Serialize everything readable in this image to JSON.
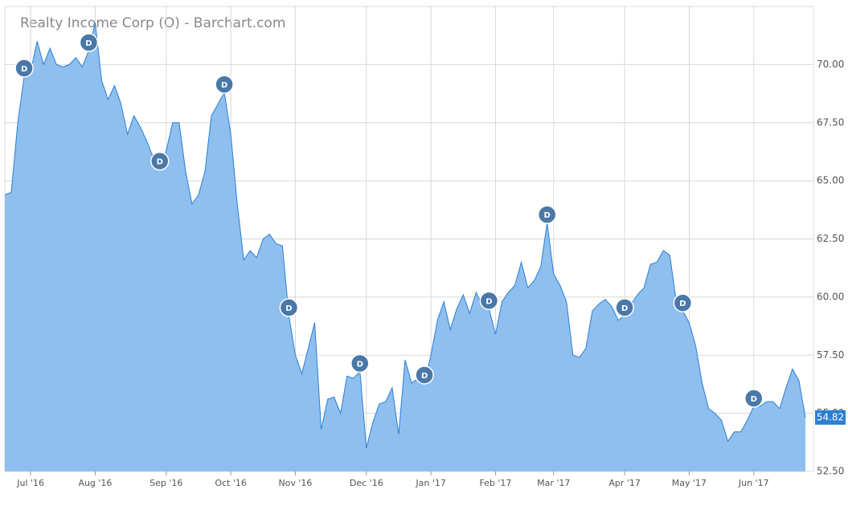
{
  "chart_data": {
    "type": "area",
    "title": "Realty Income Corp (O) - Barchart.com",
    "color": "#8fbfee",
    "line_color": "#2a7fd4",
    "categories": [
      null,
      null,
      null,
      null,
      "Jul '16",
      null,
      null,
      null,
      null,
      null,
      null,
      null,
      null,
      null,
      "Aug '16",
      null,
      null,
      null,
      null,
      null,
      null,
      null,
      null,
      null,
      null,
      "Sep '16",
      null,
      null,
      null,
      null,
      null,
      null,
      null,
      null,
      null,
      "Oct '16",
      null,
      null,
      null,
      null,
      null,
      null,
      null,
      null,
      null,
      "Nov '16",
      null,
      null,
      null,
      null,
      null,
      null,
      null,
      null,
      null,
      null,
      "Dec '16",
      null,
      null,
      null,
      null,
      null,
      null,
      null,
      null,
      null,
      "Jan '17",
      null,
      null,
      null,
      null,
      null,
      null,
      null,
      null,
      null,
      "Feb '17",
      null,
      null,
      null,
      null,
      null,
      null,
      null,
      null,
      "Mar '17",
      null,
      null,
      null,
      null,
      null,
      null,
      null,
      null,
      null,
      null,
      "Apr '17",
      null,
      null,
      null,
      null,
      null,
      null,
      null,
      null,
      null,
      "May '17",
      null,
      null,
      null,
      null,
      null,
      null,
      null,
      null,
      null,
      "Jun '17",
      null,
      null,
      null,
      null,
      null,
      null,
      null,
      null
    ],
    "values": [
      64.4,
      64.5,
      67.5,
      69.5,
      69.7,
      71.0,
      70.0,
      70.7,
      70.0,
      69.9,
      70.0,
      70.3,
      69.9,
      70.6,
      71.8,
      69.3,
      68.5,
      69.1,
      68.3,
      67.0,
      67.8,
      67.3,
      66.7,
      66.0,
      65.5,
      66.3,
      67.5,
      67.5,
      65.4,
      64.0,
      64.4,
      65.4,
      67.8,
      68.3,
      68.8,
      67.0,
      64.0,
      61.6,
      62.0,
      61.7,
      62.5,
      62.7,
      62.3,
      62.2,
      59.2,
      57.5,
      56.7,
      57.8,
      58.9,
      54.3,
      55.6,
      55.7,
      55.0,
      56.6,
      56.5,
      56.8,
      53.5,
      54.6,
      55.4,
      55.5,
      56.1,
      54.1,
      57.3,
      56.3,
      56.5,
      56.3,
      57.5,
      59.0,
      59.8,
      58.6,
      59.5,
      60.1,
      59.3,
      60.2,
      59.6,
      59.5,
      58.4,
      59.8,
      60.2,
      60.5,
      61.5,
      60.4,
      60.7,
      61.3,
      63.2,
      61.0,
      60.5,
      59.8,
      57.5,
      57.4,
      57.8,
      59.4,
      59.7,
      59.9,
      59.6,
      59.0,
      59.2,
      59.7,
      60.1,
      60.4,
      61.4,
      61.5,
      62.0,
      61.8,
      59.8,
      59.4,
      58.9,
      57.9,
      56.3,
      55.2,
      55.0,
      54.7,
      53.8,
      54.2,
      54.2,
      54.7,
      55.3,
      55.3,
      55.5,
      55.5,
      55.2,
      56.1,
      56.9,
      56.4,
      54.82
    ],
    "annotations": [
      {
        "text": "D",
        "x": 3
      },
      {
        "text": "D",
        "x": 13
      },
      {
        "text": "D",
        "x": 24
      },
      {
        "text": "D",
        "x": 34
      },
      {
        "text": "D",
        "x": 44
      },
      {
        "text": "D",
        "x": 55
      },
      {
        "text": "D",
        "x": 65
      },
      {
        "text": "D",
        "x": 75
      },
      {
        "text": "D",
        "x": 84
      },
      {
        "text": "D",
        "x": 96
      },
      {
        "text": "D",
        "x": 105
      },
      {
        "text": "D",
        "x": 116
      }
    ],
    "ylim": [
      52.5,
      72.5
    ],
    "yticks": [
      {
        "value": 52.5,
        "label": "52.50"
      },
      {
        "value": 55,
        "label": "55.00"
      },
      {
        "value": 57.5,
        "label": "57.50"
      },
      {
        "value": 60,
        "label": "60.00"
      },
      {
        "value": 62.5,
        "label": "62.50"
      },
      {
        "value": 65,
        "label": "65.00"
      },
      {
        "value": 67.5,
        "label": "67.50"
      },
      {
        "value": 70,
        "label": "70.00"
      }
    ],
    "grid": true
  }
}
